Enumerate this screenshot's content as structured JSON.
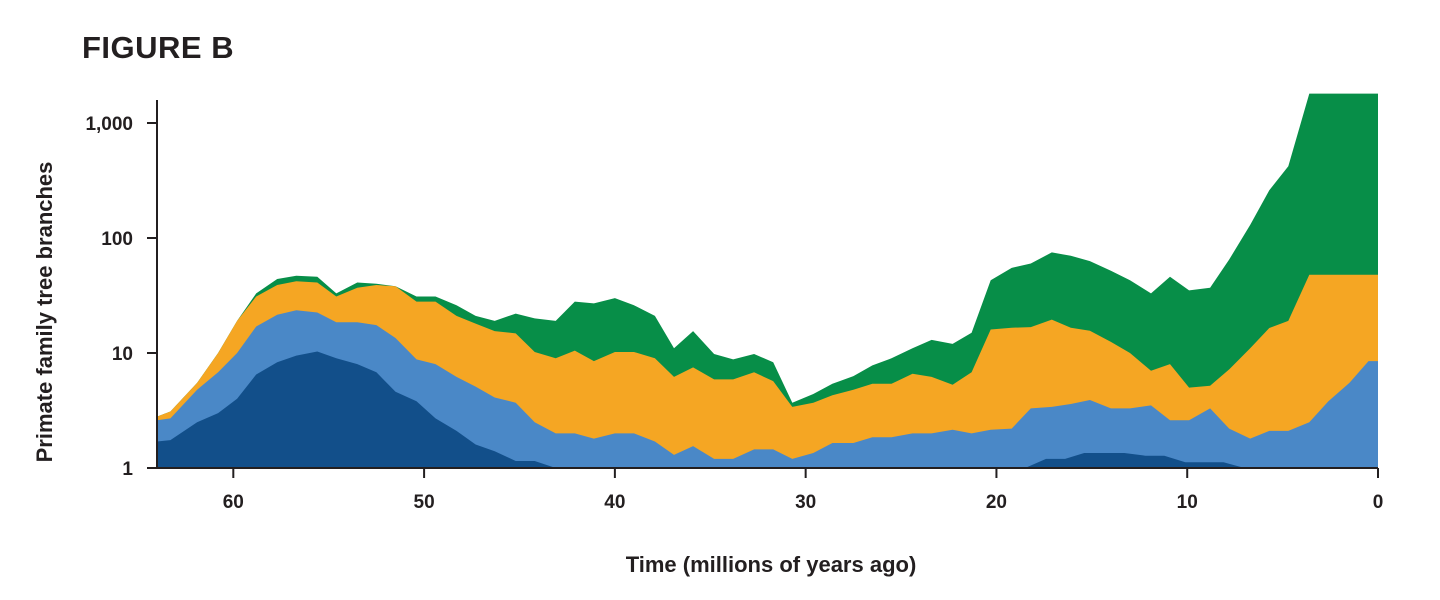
{
  "figure_title": "FIGURE B",
  "colors": {
    "dark_blue": "#124f8a",
    "mid_blue": "#4a88c7",
    "orange": "#f5a623",
    "green": "#078e48",
    "axis": "#231f20"
  },
  "chart_data": {
    "type": "area",
    "stacked": true,
    "title": "FIGURE B",
    "xlabel": "Time (millions of years ago)",
    "ylabel": "Primate family tree branches",
    "xlim": [
      64,
      0
    ],
    "ylim": [
      1,
      1800
    ],
    "yscale": "log",
    "x_ticks": [
      60,
      50,
      40,
      30,
      20,
      10,
      0
    ],
    "x_tick_labels": [
      "60",
      "50",
      "40",
      "30",
      "20",
      "10",
      "0"
    ],
    "y_ticks": [
      1,
      10,
      100,
      1000
    ],
    "y_tick_labels": [
      "1",
      "10",
      "100",
      "1,000"
    ],
    "legend": "none",
    "series_note": "values are cumulative stack tops (log axis)",
    "series": [
      {
        "name": "dark blue",
        "color": "#124f8a",
        "points": [
          [
            64,
            1.7
          ],
          [
            63.3,
            1.75
          ],
          [
            61.9,
            2.5
          ],
          [
            60.8,
            3.0
          ],
          [
            59.8,
            4.0
          ],
          [
            58.8,
            6.5
          ],
          [
            57.7,
            8.3
          ],
          [
            56.7,
            9.5
          ],
          [
            55.6,
            10.3
          ],
          [
            54.6,
            9.0
          ],
          [
            53.5,
            8.0
          ],
          [
            52.5,
            6.8
          ],
          [
            51.5,
            4.6
          ],
          [
            50.4,
            3.8
          ],
          [
            49.4,
            2.7
          ],
          [
            48.3,
            2.1
          ],
          [
            47.3,
            1.6
          ],
          [
            46.3,
            1.4
          ],
          [
            45.2,
            1.15
          ],
          [
            44.2,
            1.15
          ],
          [
            43.1,
            1.0
          ],
          [
            18.5,
            1.0
          ],
          [
            17.4,
            1.2
          ],
          [
            16.4,
            1.2
          ],
          [
            15.4,
            1.35
          ],
          [
            14.3,
            1.35
          ],
          [
            13.3,
            1.35
          ],
          [
            12.2,
            1.28
          ],
          [
            11.2,
            1.28
          ],
          [
            10.1,
            1.12
          ],
          [
            9.1,
            1.12
          ],
          [
            8.1,
            1.12
          ],
          [
            7.0,
            1.0
          ],
          [
            0,
            1.0
          ]
        ]
      },
      {
        "name": "mid blue",
        "color": "#4a88c7",
        "points": [
          [
            64,
            2.6
          ],
          [
            63.3,
            2.7
          ],
          [
            61.9,
            4.8
          ],
          [
            60.8,
            6.8
          ],
          [
            59.8,
            10.0
          ],
          [
            58.8,
            17.0
          ],
          [
            57.7,
            21.5
          ],
          [
            56.7,
            23.5
          ],
          [
            55.6,
            22.5
          ],
          [
            54.6,
            18.5
          ],
          [
            53.5,
            18.5
          ],
          [
            52.5,
            17.5
          ],
          [
            51.5,
            13.5
          ],
          [
            50.4,
            8.8
          ],
          [
            49.4,
            8.0
          ],
          [
            48.3,
            6.2
          ],
          [
            47.3,
            5.1
          ],
          [
            46.3,
            4.1
          ],
          [
            45.2,
            3.7
          ],
          [
            44.2,
            2.5
          ],
          [
            43.1,
            2.0
          ],
          [
            42.1,
            2.0
          ],
          [
            41.1,
            1.8
          ],
          [
            40.0,
            2.0
          ],
          [
            39.0,
            2.0
          ],
          [
            37.9,
            1.7
          ],
          [
            36.9,
            1.3
          ],
          [
            35.9,
            1.55
          ],
          [
            34.8,
            1.2
          ],
          [
            33.8,
            1.2
          ],
          [
            32.7,
            1.45
          ],
          [
            31.7,
            1.45
          ],
          [
            30.7,
            1.2
          ],
          [
            29.6,
            1.35
          ],
          [
            28.6,
            1.65
          ],
          [
            27.5,
            1.65
          ],
          [
            26.5,
            1.85
          ],
          [
            25.5,
            1.85
          ],
          [
            24.4,
            2.0
          ],
          [
            23.4,
            2.0
          ],
          [
            22.3,
            2.15
          ],
          [
            21.3,
            2.0
          ],
          [
            20.3,
            2.15
          ],
          [
            19.2,
            2.2
          ],
          [
            18.2,
            3.3
          ],
          [
            17.1,
            3.4
          ],
          [
            16.1,
            3.6
          ],
          [
            15.1,
            3.9
          ],
          [
            14.0,
            3.3
          ],
          [
            13.0,
            3.3
          ],
          [
            11.9,
            3.5
          ],
          [
            10.9,
            2.6
          ],
          [
            9.9,
            2.6
          ],
          [
            8.8,
            3.3
          ],
          [
            7.8,
            2.2
          ],
          [
            6.7,
            1.8
          ],
          [
            5.7,
            2.1
          ],
          [
            4.7,
            2.1
          ],
          [
            3.6,
            2.5
          ],
          [
            2.6,
            3.8
          ],
          [
            1.5,
            5.5
          ],
          [
            0.5,
            8.5
          ],
          [
            0,
            8.5
          ]
        ]
      },
      {
        "name": "orange",
        "color": "#f5a623",
        "points": [
          [
            64,
            2.8
          ],
          [
            63.3,
            3.1
          ],
          [
            61.9,
            5.5
          ],
          [
            60.8,
            10.0
          ],
          [
            59.8,
            19.0
          ],
          [
            58.8,
            31.0
          ],
          [
            57.7,
            39.0
          ],
          [
            56.7,
            42.0
          ],
          [
            55.6,
            41.0
          ],
          [
            54.6,
            31.0
          ],
          [
            53.5,
            37.0
          ],
          [
            52.5,
            39.0
          ],
          [
            51.5,
            38.0
          ],
          [
            50.4,
            28.0
          ],
          [
            49.4,
            28.0
          ],
          [
            48.3,
            21.0
          ],
          [
            47.3,
            18.0
          ],
          [
            46.3,
            15.5
          ],
          [
            45.2,
            14.8
          ],
          [
            44.2,
            10.2
          ],
          [
            43.1,
            9.0
          ],
          [
            42.1,
            10.5
          ],
          [
            41.1,
            8.5
          ],
          [
            40.0,
            10.2
          ],
          [
            39.0,
            10.2
          ],
          [
            37.9,
            9.0
          ],
          [
            36.9,
            6.2
          ],
          [
            35.9,
            7.5
          ],
          [
            34.8,
            5.9
          ],
          [
            33.8,
            5.9
          ],
          [
            32.7,
            6.8
          ],
          [
            31.7,
            5.7
          ],
          [
            30.7,
            3.4
          ],
          [
            29.6,
            3.7
          ],
          [
            28.6,
            4.3
          ],
          [
            27.5,
            4.8
          ],
          [
            26.5,
            5.4
          ],
          [
            25.5,
            5.4
          ],
          [
            24.4,
            6.6
          ],
          [
            23.4,
            6.2
          ],
          [
            22.3,
            5.3
          ],
          [
            21.3,
            6.8
          ],
          [
            20.3,
            16.0
          ],
          [
            19.2,
            16.6
          ],
          [
            18.2,
            16.8
          ],
          [
            17.1,
            19.5
          ],
          [
            16.1,
            16.6
          ],
          [
            15.1,
            15.6
          ],
          [
            14.0,
            12.5
          ],
          [
            13.0,
            10.0
          ],
          [
            11.9,
            7.0
          ],
          [
            10.9,
            8.0
          ],
          [
            9.9,
            5.0
          ],
          [
            8.8,
            5.2
          ],
          [
            7.8,
            7.2
          ],
          [
            6.7,
            11.0
          ],
          [
            5.7,
            16.5
          ],
          [
            4.7,
            19.0
          ],
          [
            3.6,
            48.0
          ],
          [
            0,
            48.0
          ]
        ]
      },
      {
        "name": "green",
        "color": "#078e48",
        "points": [
          [
            64,
            2.8
          ],
          [
            63.3,
            3.1
          ],
          [
            61.9,
            5.5
          ],
          [
            60.8,
            10.0
          ],
          [
            59.8,
            19.0
          ],
          [
            58.8,
            33.0
          ],
          [
            57.7,
            44.0
          ],
          [
            56.7,
            47.0
          ],
          [
            55.6,
            46.0
          ],
          [
            54.6,
            33.0
          ],
          [
            53.5,
            41.0
          ],
          [
            52.5,
            40.0
          ],
          [
            51.5,
            38.0
          ],
          [
            50.4,
            31.0
          ],
          [
            49.4,
            31.0
          ],
          [
            48.3,
            26.0
          ],
          [
            47.3,
            21.0
          ],
          [
            46.3,
            19.0
          ],
          [
            45.2,
            22.0
          ],
          [
            44.2,
            20.0
          ],
          [
            43.1,
            19.0
          ],
          [
            42.1,
            28.0
          ],
          [
            41.1,
            27.0
          ],
          [
            40.0,
            30.0
          ],
          [
            39.0,
            26.0
          ],
          [
            37.9,
            21.0
          ],
          [
            36.9,
            11.0
          ],
          [
            35.9,
            15.5
          ],
          [
            34.8,
            9.8
          ],
          [
            33.8,
            8.8
          ],
          [
            32.7,
            9.8
          ],
          [
            31.7,
            8.3
          ],
          [
            30.7,
            3.7
          ],
          [
            29.6,
            4.4
          ],
          [
            28.6,
            5.4
          ],
          [
            27.5,
            6.3
          ],
          [
            26.5,
            7.8
          ],
          [
            25.5,
            9.0
          ],
          [
            24.4,
            11.0
          ],
          [
            23.4,
            13.0
          ],
          [
            22.3,
            12.0
          ],
          [
            21.3,
            15.0
          ],
          [
            20.3,
            43.0
          ],
          [
            19.2,
            55.0
          ],
          [
            18.2,
            60.0
          ],
          [
            17.1,
            75.0
          ],
          [
            16.1,
            70.0
          ],
          [
            15.1,
            63.0
          ],
          [
            14.0,
            52.0
          ],
          [
            13.0,
            43.0
          ],
          [
            11.9,
            33.0
          ],
          [
            10.9,
            46.0
          ],
          [
            9.9,
            35.0
          ],
          [
            8.8,
            37.0
          ],
          [
            7.8,
            65.0
          ],
          [
            6.7,
            130.0
          ],
          [
            5.7,
            260.0
          ],
          [
            4.7,
            420.0
          ],
          [
            3.6,
            1800.0
          ],
          [
            0,
            1800.0
          ]
        ]
      }
    ]
  }
}
